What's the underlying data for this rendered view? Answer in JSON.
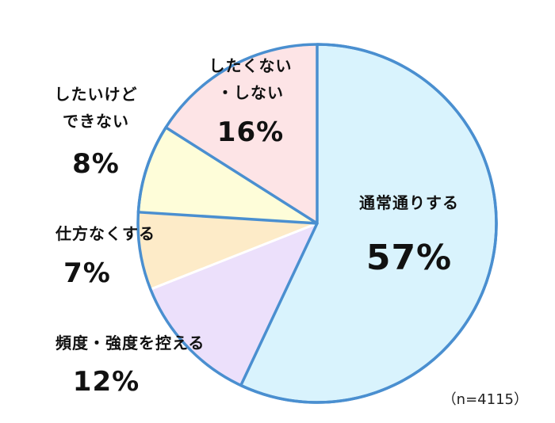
{
  "chart_data": {
    "type": "pie",
    "title": "",
    "note": "（n=4115）",
    "slices": [
      {
        "label": "通常通りする",
        "label_lines": [
          "通常通りする"
        ],
        "value": 57,
        "display": "57%",
        "color": "#d9f3fd"
      },
      {
        "label": "頻度・強度を控える",
        "label_lines": [
          "頻度・強度を控える"
        ],
        "value": 12,
        "display": "12%",
        "color": "#ece0fb"
      },
      {
        "label": "仕方なくする",
        "label_lines": [
          "仕方なくする"
        ],
        "value": 7,
        "display": "7%",
        "color": "#fdebc8"
      },
      {
        "label": "したいけどできない",
        "label_lines": [
          "したいけど",
          "できない"
        ],
        "value": 8,
        "display": "8%",
        "color": "#fefdd9"
      },
      {
        "label": "したくない・しない",
        "label_lines": [
          "したくない",
          "・しない"
        ],
        "value": 16,
        "display": "16%",
        "color": "#fde4e6"
      }
    ],
    "highlight_border_color": "#4a8fd0"
  }
}
